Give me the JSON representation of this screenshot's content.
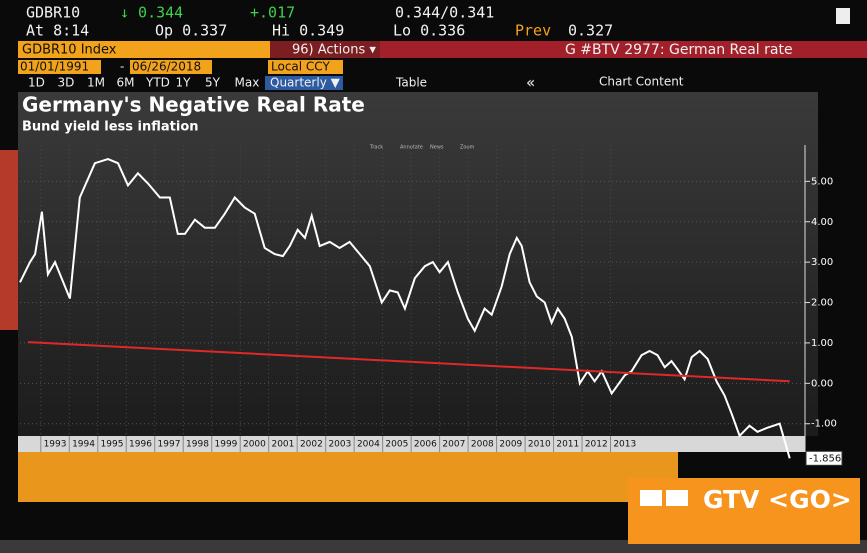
{
  "header": {
    "ticker": "GDBR10",
    "last": "↓ 0.344",
    "change": "+.017",
    "bid_ask": "0.344/0.341",
    "time": "At 8:14",
    "open": "Op 0.337",
    "high": "Hi 0.349",
    "low": "Lo 0.336",
    "prev_label": "Prev",
    "prev": "0.327"
  },
  "toolbar": {
    "security": "GDBR10 Index",
    "actions": "96) Actions ▾",
    "function": "G #BTV 2977: German Real rate",
    "start_date": "01/01/1991",
    "dash": "-",
    "end_date": "06/26/2018",
    "currency": "Local CCY",
    "ranges": [
      "1D",
      "3D",
      "1M",
      "6M",
      "YTD",
      "1Y",
      "5Y",
      "Max"
    ],
    "frequency": "Quarterly ▼",
    "table": "Table",
    "collapse": "«",
    "chart_content": "Chart Content"
  },
  "chart_controls": [
    "Track",
    "Annotate",
    "News",
    "Zoom"
  ],
  "overlay": {
    "label": "GTV <GO>"
  },
  "chart_data": {
    "type": "line",
    "title": "Germany's Negative Real Rate",
    "subtitle": "Bund yield less inflation",
    "xlim": [
      1992.27,
      2019.3
    ],
    "xticks": [
      1993,
      1994,
      1995,
      1996,
      1997,
      1998,
      1999,
      2000,
      2001,
      2002,
      2003,
      2004,
      2005,
      2006,
      2007,
      2008,
      2009,
      2010,
      2011,
      2012,
      2013
    ],
    "ylim": [
      -1.7,
      5.9
    ],
    "yticks": [
      {
        "value": -1,
        "label": "-1.00"
      },
      {
        "value": 0,
        "label": "0.00"
      },
      {
        "value": 1,
        "label": "1.00"
      },
      {
        "value": 2,
        "label": "2.00"
      },
      {
        "value": 3,
        "label": "3.00"
      },
      {
        "value": 4,
        "label": "4.00"
      },
      {
        "value": 5,
        "label": "5.00"
      }
    ],
    "grid": true,
    "series": [
      {
        "color": "#ffffff",
        "x": [
          1992.27,
          1992.62,
          1992.8,
          1993.04,
          1993.25,
          1993.5,
          1994.02,
          1994.37,
          1994.9,
          1995.36,
          1995.71,
          1996.06,
          1996.41,
          1996.76,
          1997.18,
          1997.53,
          1997.81,
          1998.06,
          1998.41,
          1998.76,
          1999.11,
          1999.46,
          1999.81,
          2000.16,
          2000.51,
          2000.86,
          2001.21,
          2001.5,
          2001.74,
          2002.02,
          2002.27,
          2002.51,
          2002.79,
          2003.14,
          2003.49,
          2003.84,
          2004.2,
          2004.55,
          2004.97,
          2005.25,
          2005.53,
          2005.78,
          2006.13,
          2006.48,
          2006.76,
          2007.0,
          2007.29,
          2007.64,
          2007.99,
          2008.23,
          2008.58,
          2008.83,
          2009.18,
          2009.46,
          2009.71,
          2009.88,
          2010.16,
          2010.41,
          2010.69,
          2010.93,
          2011.15,
          2011.39,
          2011.64,
          2011.92,
          2012.2,
          2012.44,
          2012.69,
          2013.04,
          2013.5,
          2013.74,
          2014.09,
          2014.37,
          2014.65,
          2014.9,
          2015.14,
          2015.35,
          2015.6,
          2015.85,
          2016.13,
          2016.41,
          2016.72,
          2017.0,
          2017.25,
          2017.53,
          2017.88,
          2018.16,
          2018.5,
          2018.94,
          2019.29
        ],
        "values": [
          2.5,
          3.0,
          3.2,
          4.25,
          2.7,
          3.0,
          2.1,
          4.6,
          5.45,
          5.55,
          5.45,
          4.9,
          5.2,
          4.95,
          4.6,
          4.6,
          3.7,
          3.7,
          4.05,
          3.85,
          3.85,
          4.2,
          4.6,
          4.35,
          4.2,
          3.35,
          3.2,
          3.15,
          3.4,
          3.8,
          3.6,
          4.15,
          3.4,
          3.5,
          3.35,
          3.5,
          3.2,
          2.9,
          2.0,
          2.3,
          2.25,
          1.85,
          2.6,
          2.9,
          3.0,
          2.75,
          3.0,
          2.25,
          1.6,
          1.3,
          1.85,
          1.7,
          2.4,
          3.2,
          3.6,
          3.4,
          2.5,
          2.15,
          2.0,
          1.5,
          1.85,
          1.6,
          1.15,
          0.0,
          0.3,
          0.05,
          0.3,
          -0.25,
          0.2,
          0.3,
          0.7,
          0.8,
          0.7,
          0.4,
          0.55,
          0.35,
          0.1,
          0.65,
          0.8,
          0.6,
          0.05,
          -0.3,
          -0.75,
          -1.3,
          -1.05,
          -1.2,
          -1.1,
          -1.0,
          -1.856
        ]
      },
      {
        "color": "#e02828",
        "x": [
          1992.55,
          2019.29
        ],
        "values": [
          1.02,
          0.05
        ]
      }
    ]
  }
}
